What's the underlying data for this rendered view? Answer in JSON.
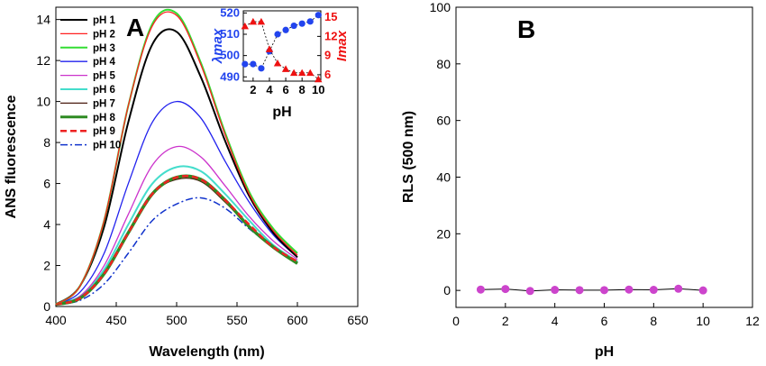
{
  "chart_data": [
    {
      "panel_label": "A",
      "type": "line",
      "xlabel": "Wavelength (nm)",
      "ylabel": "ANS fluorescence",
      "xlim": [
        400,
        650
      ],
      "ylim": [
        0,
        14.6
      ],
      "xticks": [
        400,
        450,
        500,
        550,
        600,
        650
      ],
      "yticks": [
        0,
        2,
        4,
        6,
        8,
        10,
        12,
        14
      ],
      "grid": false,
      "legend_position": "upper-left",
      "x": [
        400,
        420,
        440,
        460,
        480,
        500,
        520,
        540,
        560,
        580,
        600
      ],
      "series": [
        {
          "name": "pH 1",
          "color": "#000000",
          "style": "solid",
          "width": 2,
          "values": [
            0.1,
            1.0,
            3.9,
            9.0,
            12.8,
            13.4,
            11.2,
            8.1,
            5.4,
            3.6,
            2.4
          ]
        },
        {
          "name": "pH 2",
          "color": "#ff2020",
          "style": "solid",
          "width": 1.3,
          "values": [
            0.1,
            1.0,
            4.2,
            9.8,
            13.7,
            14.2,
            11.8,
            8.4,
            5.5,
            3.7,
            2.5
          ]
        },
        {
          "name": "pH 3",
          "color": "#33dd33",
          "style": "solid",
          "width": 2,
          "values": [
            0.1,
            1.0,
            4.2,
            9.8,
            13.8,
            14.3,
            11.9,
            8.5,
            5.6,
            3.8,
            2.6
          ]
        },
        {
          "name": "pH 4",
          "color": "#2222ee",
          "style": "solid",
          "width": 1.3,
          "values": [
            0.1,
            0.7,
            2.6,
            6.0,
            9.0,
            10.0,
            9.2,
            7.1,
            5.1,
            3.5,
            2.4
          ]
        },
        {
          "name": "pH 5",
          "color": "#cc33cc",
          "style": "solid",
          "width": 1.3,
          "values": [
            0.1,
            0.5,
            2.0,
            4.5,
            6.9,
            7.8,
            7.3,
            5.9,
            4.4,
            3.2,
            2.3
          ]
        },
        {
          "name": "pH 6",
          "color": "#44ddcc",
          "style": "solid",
          "width": 2,
          "values": [
            0.1,
            0.5,
            1.8,
            4.0,
            6.0,
            6.8,
            6.6,
            5.5,
            4.2,
            3.0,
            2.2
          ]
        },
        {
          "name": "pH 7",
          "color": "#4a1c10",
          "style": "solid",
          "width": 1.3,
          "values": [
            0.1,
            0.4,
            1.6,
            3.6,
            5.5,
            6.2,
            6.1,
            5.1,
            3.9,
            2.9,
            2.1
          ]
        },
        {
          "name": "pH 8",
          "color": "#2e8b22",
          "style": "solid",
          "width": 3.5,
          "values": [
            0.1,
            0.4,
            1.6,
            3.6,
            5.5,
            6.3,
            6.2,
            5.2,
            3.9,
            2.9,
            2.1
          ]
        },
        {
          "name": "pH 9",
          "color": "#ee2222",
          "style": "dash",
          "width": 2.5,
          "values": [
            0.1,
            0.4,
            1.6,
            3.6,
            5.5,
            6.3,
            6.2,
            5.2,
            4.0,
            2.9,
            2.2
          ]
        },
        {
          "name": "pH 10",
          "color": "#1133cc",
          "style": "dashdot",
          "width": 1.5,
          "values": [
            0.1,
            0.3,
            1.1,
            2.6,
            4.2,
            5.0,
            5.3,
            4.8,
            3.8,
            2.9,
            2.2
          ]
        }
      ]
    },
    {
      "panel_label": "",
      "type": "scatter",
      "role": "inset",
      "xlabel": "pH",
      "ylabel_left": "λmax",
      "ylabel_right": "Imax",
      "xlim": [
        0.8,
        10.3
      ],
      "ylim_left": [
        488,
        521
      ],
      "ylim_right": [
        5,
        16
      ],
      "xticks": [
        2,
        4,
        6,
        8,
        10
      ],
      "yticks_left": [
        490,
        500,
        510,
        520
      ],
      "yticks_right": [
        6,
        9,
        12,
        15
      ],
      "left_color": "#2244ee",
      "right_color": "#ee1111",
      "series": [
        {
          "axis": "left",
          "marker": "circle",
          "color": "#2244ee",
          "x": [
            1,
            2,
            3,
            4,
            5,
            6,
            7,
            8,
            9,
            10
          ],
          "values": [
            496,
            496,
            494,
            502,
            510,
            512,
            514,
            515,
            516,
            519
          ]
        },
        {
          "axis": "right",
          "marker": "triangle",
          "color": "#ee1111",
          "x": [
            1,
            2,
            3,
            4,
            5,
            6,
            7,
            8,
            9,
            10
          ],
          "values": [
            13.6,
            14.3,
            14.3,
            10.0,
            7.8,
            6.9,
            6.3,
            6.3,
            6.3,
            5.3
          ]
        }
      ]
    },
    {
      "panel_label": "B",
      "type": "line",
      "xlabel": "pH",
      "ylabel": "RLS (500 nm)",
      "xlim": [
        0,
        12
      ],
      "ylim": [
        -6,
        100
      ],
      "xticks": [
        0,
        2,
        4,
        6,
        8,
        10,
        12
      ],
      "yticks": [
        0,
        20,
        40,
        60,
        80,
        100
      ],
      "grid": false,
      "series": [
        {
          "name": "",
          "color": "#cc44cc",
          "marker": "circle",
          "x": [
            1,
            2,
            3,
            4,
            5,
            6,
            7,
            8,
            9,
            10
          ],
          "values": [
            0.3,
            0.5,
            -0.2,
            0.2,
            0.1,
            0.1,
            0.3,
            0.2,
            0.6,
            0.0
          ]
        }
      ]
    }
  ]
}
